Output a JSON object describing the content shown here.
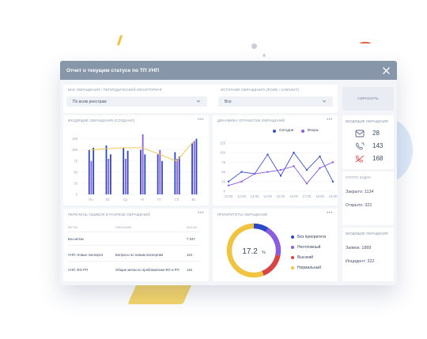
{
  "modal": {
    "title": "Отчет о текущем статусе по ТП УНП"
  },
  "filters": {
    "source_label": "Все обращения / периодический мониторинг",
    "source_value": "По всем реестрам",
    "channel_label": "Источник обращения (ФОИВ / субъект)",
    "channel_value": "Все"
  },
  "reset_button": "Сбросить",
  "bar_chart": {
    "title": "Входящие обращения (создано)",
    "more": "•••",
    "y_ticks": [
      "125",
      "100",
      "75",
      "50",
      "25",
      "0"
    ],
    "days": [
      "Пн",
      "Вт",
      "Ср",
      "Чт",
      "Пт",
      "Сб",
      "Вс"
    ]
  },
  "line_chart": {
    "title": "Динамика отработки обращений",
    "more": "•••",
    "legend_today": "Сегодня",
    "legend_yesterday": "Вчера",
    "y_ticks": [
      "125",
      "100",
      "75",
      "50",
      "25",
      "0"
    ],
    "hours": [
      "10:00",
      "12:00",
      "13:00",
      "14:00",
      "15:00",
      "16:00",
      "17:00",
      "18:00",
      "19:00"
    ]
  },
  "chart_data": [
    {
      "type": "bar",
      "title": "Входящие обращения (создано)",
      "categories": [
        "Пн",
        "Вт",
        "Ср",
        "Чт",
        "Пт",
        "Сб",
        "Вс"
      ],
      "series": [
        {
          "values": [
            100,
            110,
            105,
            100,
            90,
            95,
            115
          ]
        },
        {
          "values": [
            75,
            80,
            80,
            135,
            100,
            80,
            120
          ]
        },
        {
          "values": [
            105,
            90,
            98,
            90,
            75,
            85,
            125
          ]
        }
      ],
      "line": [
        100,
        103,
        105,
        105,
        90,
        75,
        120
      ],
      "ylim": [
        0,
        135
      ]
    },
    {
      "type": "line",
      "title": "Динамика отработки обращений",
      "x": [
        "10:00",
        "12:00",
        "13:00",
        "14:00",
        "15:00",
        "16:00",
        "17:00",
        "18:00",
        "19:00"
      ],
      "series": [
        {
          "name": "Сегодня",
          "values": [
            25,
            50,
            45,
            95,
            40,
            100,
            55,
            90,
            25
          ]
        },
        {
          "name": "Вчера",
          "values": [
            15,
            25,
            45,
            50,
            55,
            65,
            20,
            60,
            75
          ]
        }
      ],
      "ylim": [
        0,
        135
      ]
    },
    {
      "type": "pie",
      "title": "Приоритеты обращений",
      "categories": [
        "Без приоритета",
        "Неотложный",
        "Высокий",
        "Нормальный"
      ],
      "values": [
        9,
        19,
        16,
        56
      ],
      "center_label": "17.2 %"
    }
  ],
  "errors_table": {
    "title": "Перечень ошибок в разрезе обращений",
    "more": "•••",
    "columns": [
      "Метка",
      "Описание",
      "Кол-во"
    ],
    "rows": [
      {
        "tag": "Без метки",
        "desc": "",
        "count": "7 037"
      },
      {
        "tag": "УНП. Новые паспорта",
        "desc": "Вопросы по новым паспортам",
        "count": "124"
      },
      {
        "tag": "УНП. ФО РП",
        "desc": "Общие метки по проблематике ФО и РП",
        "count": "115"
      }
    ]
  },
  "priority": {
    "title": "Приоритеты обращений",
    "more": "•••",
    "center_value": "17.2",
    "center_unit": "%",
    "legend": [
      {
        "label": "Без приоритета",
        "color": "#2d47c9"
      },
      {
        "label": "Неотложный",
        "color": "#8b5ce0"
      },
      {
        "label": "Высокий",
        "color": "#d84545"
      },
      {
        "label": "Нормальный",
        "color": "#f2c340"
      }
    ]
  },
  "incoming": {
    "title": "Входящие обращения",
    "email": "28",
    "calls_in": "143",
    "calls_missed": "168"
  },
  "tasks": {
    "title": "Статус задач",
    "closed": "Закрыто: 1134",
    "open": "Открыто: 322"
  },
  "incoming2": {
    "title": "Входящие обращения",
    "requests": "Заявок: 1889",
    "incidents": "Инцидент: 322"
  },
  "colors": {
    "header": "#8896aa",
    "bar_dark": "#2d47c9",
    "bar_purple": "#8b5ce0",
    "line_yellow": "#f2c340",
    "line_today": "#3b4fd0",
    "line_yesterday": "#8b5ce0"
  }
}
